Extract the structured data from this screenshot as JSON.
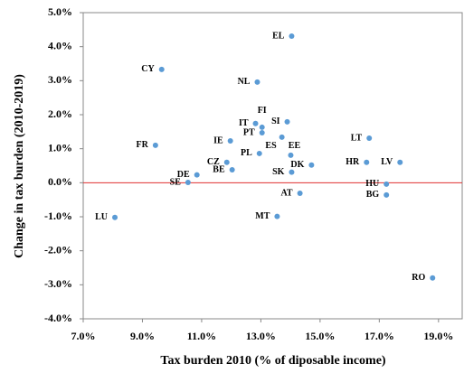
{
  "chart_data": {
    "type": "scatter",
    "x_label": "Tax burden  2010 (% of diposable income)",
    "y_label": "Change in tax burden  (2010-2019)",
    "labels": [
      "EL",
      "CY",
      "NL",
      "FI",
      "PT",
      "IT",
      "SI",
      "LT",
      "FR",
      "IE",
      "ES",
      "EE",
      "PL",
      "CZ",
      "BE",
      "DE",
      "SE",
      "SK",
      "DK",
      "HR",
      "LV",
      "HU",
      "BG",
      "AT",
      "LU",
      "MT",
      "RO"
    ],
    "x": [
      14.04,
      9.65,
      12.88,
      13.04,
      13.04,
      12.82,
      13.89,
      16.66,
      9.44,
      11.97,
      13.71,
      14.01,
      12.95,
      11.85,
      12.03,
      10.84,
      10.54,
      14.04,
      14.71,
      16.57,
      17.7,
      17.24,
      17.24,
      14.32,
      8.07,
      13.55,
      18.8
    ],
    "values": [
      4.31,
      3.33,
      2.96,
      1.63,
      1.47,
      1.74,
      1.79,
      1.31,
      1.1,
      1.23,
      1.34,
      0.81,
      0.86,
      0.6,
      0.38,
      0.23,
      0.01,
      0.31,
      0.52,
      0.6,
      0.6,
      -0.04,
      -0.36,
      -0.31,
      -1.02,
      -0.99,
      -2.8
    ],
    "color": "#5b9bd5",
    "zero_line_color": "#e03030",
    "xlim": [
      7,
      19.8
    ],
    "ylim": [
      -4,
      5
    ],
    "xticks": [
      {
        "value": 7,
        "label": "7.0%"
      },
      {
        "value": 9,
        "label": "9.0%"
      },
      {
        "value": 11,
        "label": "11.0%"
      },
      {
        "value": 13,
        "label": "13.0%"
      },
      {
        "value": 15,
        "label": "15.0%"
      },
      {
        "value": 17,
        "label": "17.0%"
      },
      {
        "value": 19,
        "label": "19.0%"
      }
    ],
    "yticks": [
      {
        "value": -4,
        "label": "-4.0%"
      },
      {
        "value": -3,
        "label": "-3.0%"
      },
      {
        "value": -2,
        "label": "-2.0%"
      },
      {
        "value": -1,
        "label": "-1.0%"
      },
      {
        "value": 0,
        "label": "0.0%"
      },
      {
        "value": 1,
        "label": "1.0%"
      },
      {
        "value": 2,
        "label": "2.0%"
      },
      {
        "value": 3,
        "label": "3.0%"
      },
      {
        "value": 4,
        "label": "4.0%"
      },
      {
        "value": 5,
        "label": "5.0%"
      }
    ]
  }
}
